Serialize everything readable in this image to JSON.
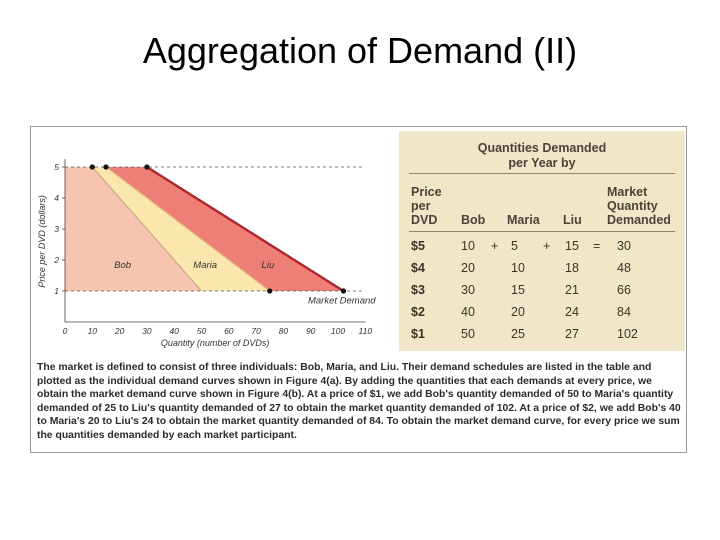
{
  "slide": {
    "title": "Aggregation of Demand (II)"
  },
  "chart_data": {
    "type": "line",
    "xlabel": "Quantity (number of DVDs)",
    "ylabel": "Price per DVD (dollars)",
    "xlim": [
      0,
      110
    ],
    "ylim": [
      0,
      5
    ],
    "x_ticks": [
      0,
      10,
      20,
      30,
      40,
      50,
      60,
      70,
      80,
      90,
      100,
      110
    ],
    "y_ticks": [
      1,
      2,
      3,
      4,
      5
    ],
    "series": [
      {
        "name": "Bob",
        "color": "#f7c4b0",
        "points": [
          [
            10,
            5
          ],
          [
            50,
            1
          ]
        ]
      },
      {
        "name": "Maria",
        "color": "#fbe7ad",
        "points": [
          [
            15,
            5
          ],
          [
            75,
            1
          ]
        ]
      },
      {
        "name": "Liu",
        "color": "#ee7f77",
        "points": [
          [
            30,
            5
          ],
          [
            102,
            1
          ]
        ]
      }
    ],
    "market_label": "Market Demand",
    "annotations": [
      "Bob",
      "Maria",
      "Liu",
      "Market Demand"
    ]
  },
  "table": {
    "title_lines": [
      "Quantities Demanded",
      "per Year by"
    ],
    "headers": {
      "price": [
        "Price",
        "per",
        "DVD"
      ],
      "bob": [
        "Bob"
      ],
      "maria": [
        "Maria"
      ],
      "liu": [
        "Liu"
      ],
      "market": [
        "Market",
        "Quantity",
        "Demanded"
      ]
    },
    "rows": [
      {
        "price": "$5",
        "bob": "10",
        "maria": "5",
        "liu": "15",
        "market": "30"
      },
      {
        "price": "$4",
        "bob": "20",
        "maria": "10",
        "liu": "18",
        "market": "48"
      },
      {
        "price": "$3",
        "bob": "30",
        "maria": "15",
        "liu": "21",
        "market": "66"
      },
      {
        "price": "$2",
        "bob": "40",
        "maria": "20",
        "liu": "24",
        "market": "84"
      },
      {
        "price": "$1",
        "bob": "50",
        "maria": "25",
        "liu": "27",
        "market": "102"
      }
    ],
    "operators": {
      "plus": "+",
      "equals": "="
    }
  },
  "caption": "The market is defined to consist of three individuals: Bob, Maria, and Liu. Their demand schedules are listed in the table and plotted as the individual demand curves shown in Figure 4(a). By adding the quantities that each demands at every price, we obtain the market demand curve shown in Figure 4(b). At a price of $1, we add Bob's quantity demanded of 50 to Maria's quantity demanded of 25 to Liu's quantity demanded of 27 to obtain the market quantity demanded of 102. At a price of $2, we add Bob's 40 to Maria's 20 to Liu's 24 to obtain the market quantity demanded of 84. To obtain the market demand curve, for every price we sum the quantities demanded by each market participant.",
  "colors": {
    "table_bg": "#f1e6c8",
    "bob_fill": "#f7c4b0",
    "maria_fill": "#fbe7ad",
    "liu_fill": "#ee7f77",
    "market_line": "#b5232a",
    "bg_fill": "#fbe3dd"
  }
}
